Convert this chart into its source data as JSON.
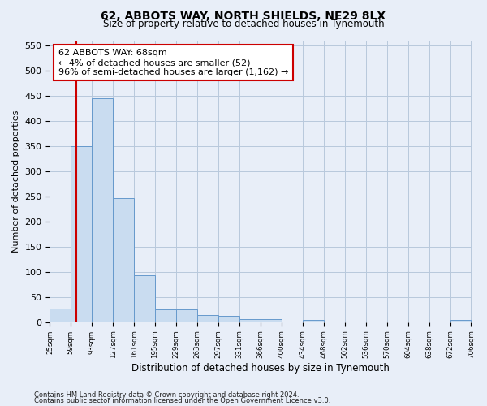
{
  "title": "62, ABBOTS WAY, NORTH SHIELDS, NE29 8LX",
  "subtitle": "Size of property relative to detached houses in Tynemouth",
  "xlabel": "Distribution of detached houses by size in Tynemouth",
  "ylabel": "Number of detached properties",
  "footer_line1": "Contains HM Land Registry data © Crown copyright and database right 2024.",
  "footer_line2": "Contains public sector information licensed under the Open Government Licence v3.0.",
  "annotation_line1": "62 ABBOTS WAY: 68sqm",
  "annotation_line2": "← 4% of detached houses are smaller (52)",
  "annotation_line3": "96% of semi-detached houses are larger (1,162) →",
  "property_size": 68,
  "bar_edges": [
    25,
    59,
    93,
    127,
    161,
    195,
    229,
    263,
    297,
    331,
    366,
    400,
    434,
    468,
    502,
    536,
    570,
    604,
    638,
    672,
    706
  ],
  "bar_heights": [
    27,
    350,
    445,
    247,
    93,
    25,
    25,
    14,
    12,
    7,
    6,
    0,
    5,
    0,
    0,
    0,
    0,
    0,
    0,
    5
  ],
  "bar_color": "#c9dcf0",
  "bar_edgecolor": "#6699cc",
  "redline_color": "#cc0000",
  "annotation_box_edgecolor": "#cc0000",
  "annotation_box_facecolor": "#ffffff",
  "grid_color": "#b8c8dc",
  "bg_color": "#e8eef8",
  "ylim": [
    0,
    560
  ],
  "yticks": [
    0,
    50,
    100,
    150,
    200,
    250,
    300,
    350,
    400,
    450,
    500,
    550
  ]
}
